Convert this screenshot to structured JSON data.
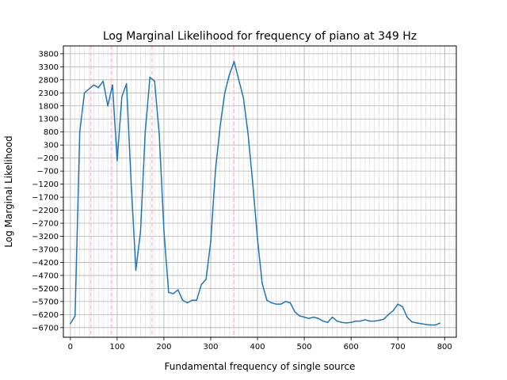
{
  "chart_data": {
    "type": "line",
    "title": "Log Marginal Likelihood for frequency of piano at 349 Hz",
    "xlabel": "Fundamental frequency of single source",
    "ylabel": "Log Marginal Likelihood",
    "xlim": [
      -15,
      825
    ],
    "ylim": [
      -7070,
      4100
    ],
    "xticks": [
      0,
      100,
      200,
      300,
      400,
      500,
      600,
      700,
      800
    ],
    "yticks": [
      -6700,
      -6200,
      -5700,
      -5200,
      -4700,
      -4200,
      -3700,
      -3200,
      -2700,
      -2200,
      -1700,
      -1200,
      -700,
      -200,
      300,
      800,
      1300,
      1800,
      2300,
      2800,
      3300,
      3800
    ],
    "x_minor_grid_step": 10,
    "grid": true,
    "line_color": "#1f77b4",
    "marker_color": "#ffc0cb",
    "markers_x": [
      43.6,
      87.3,
      174.5,
      349
    ],
    "series": [
      {
        "x": [
          0,
          10,
          20,
          30,
          40,
          50,
          60,
          70,
          80,
          90,
          100,
          110,
          120,
          130,
          140,
          150,
          160,
          170,
          180,
          190,
          200,
          210,
          220,
          230,
          240,
          250,
          260,
          270,
          280,
          290,
          300,
          310,
          320,
          330,
          340,
          350,
          360,
          370,
          380,
          390,
          400,
          410,
          420,
          430,
          440,
          450,
          460,
          470,
          480,
          490,
          500,
          510,
          520,
          530,
          540,
          550,
          560,
          570,
          580,
          590,
          600,
          610,
          620,
          630,
          640,
          650,
          660,
          670,
          680,
          690,
          700,
          710,
          720,
          730,
          740,
          750,
          760,
          770,
          780,
          790
        ],
        "values": [
          -6550,
          -6250,
          800,
          2300,
          2450,
          2600,
          2500,
          2750,
          1800,
          2600,
          -300,
          2150,
          2650,
          -1200,
          -4500,
          -3000,
          800,
          2900,
          2750,
          700,
          -3000,
          -5350,
          -5400,
          -5250,
          -5650,
          -5750,
          -5650,
          -5650,
          -5050,
          -4850,
          -3400,
          -700,
          1000,
          2300,
          3000,
          3500,
          2800,
          2100,
          700,
          -1200,
          -3300,
          -5000,
          -5650,
          -5750,
          -5800,
          -5800,
          -5700,
          -5750,
          -6100,
          -6250,
          -6300,
          -6350,
          -6300,
          -6350,
          -6450,
          -6500,
          -6300,
          -6450,
          -6500,
          -6520,
          -6500,
          -6450,
          -6450,
          -6400,
          -6450,
          -6450,
          -6420,
          -6380,
          -6200,
          -6050,
          -5800,
          -5900,
          -6300,
          -6480,
          -6520,
          -6550,
          -6580,
          -6600,
          -6600,
          -6530
        ]
      }
    ]
  }
}
